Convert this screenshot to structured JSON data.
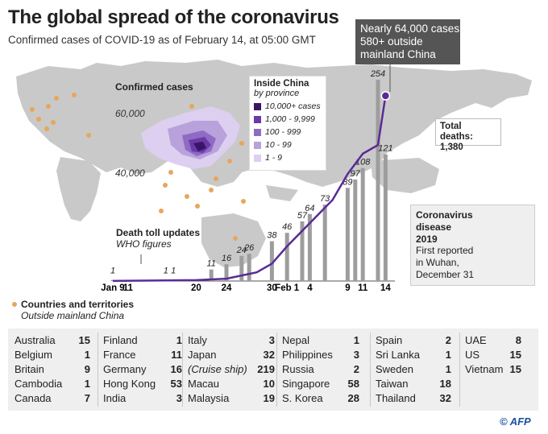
{
  "title": "The global spread of the coronavirus",
  "subtitle": "Confirmed cases of COVID-19 as of February 14, at 05:00 GMT",
  "callout": [
    "Nearly 64,000 cases",
    "580+ outside",
    "mainland China"
  ],
  "map_legend_title": "Confirmed cases",
  "lat_labels": [
    "60,000",
    "40,000"
  ],
  "china_legend": {
    "title": "Inside China",
    "subtitle": "by province",
    "items": [
      {
        "label": "10,000+ cases",
        "color": "#3a1466"
      },
      {
        "label": "1,000 - 9,999",
        "color": "#6a3aa8"
      },
      {
        "label": "100 - 999",
        "color": "#8f6bc4"
      },
      {
        "label": "10 - 99",
        "color": "#b9a1dc"
      },
      {
        "label": "1 - 9",
        "color": "#dccff0"
      }
    ]
  },
  "total_deaths": {
    "label": "Total deaths:",
    "value": "1,380"
  },
  "virus_box": {
    "title": [
      "Coronavirus",
      "disease",
      "2019"
    ],
    "text": [
      "First reported",
      "in Wuhan,",
      "December 31"
    ]
  },
  "death_toll": {
    "title": "Death toll updates",
    "subtitle": "WHO figures"
  },
  "countries_key": {
    "title": "Countries and territories",
    "subtitle": "Outside mainland China"
  },
  "colors": {
    "curve": "#5b2a96",
    "bar": "#9d9d9d",
    "country_dot": "#e9a55d",
    "map_land": "#c9c9c9",
    "callout_bg": "#555555"
  },
  "chart_data": {
    "type": "bar",
    "title": "Death toll updates",
    "subtitle": "WHO figures",
    "x_tick_labels": [
      "Jan 9",
      "11",
      "20",
      "24",
      "30",
      "Feb 1",
      "4",
      "9",
      "11",
      "14"
    ],
    "x_tick_days": [
      1,
      3,
      12,
      16,
      22,
      24,
      27,
      32,
      34,
      37
    ],
    "daily_deaths": [
      {
        "day": 1,
        "value": 1
      },
      {
        "day": 8,
        "value": 1
      },
      {
        "day": 9,
        "value": 1
      },
      {
        "day": 11,
        "value": 0
      },
      {
        "day": 12,
        "value": 0
      },
      {
        "day": 14,
        "value": 11
      },
      {
        "day": 15,
        "value": 0
      },
      {
        "day": 16,
        "value": 16
      },
      {
        "day": 17,
        "value": 0
      },
      {
        "day": 18,
        "value": 24
      },
      {
        "day": 19,
        "value": 26
      },
      {
        "day": 20,
        "value": 0
      },
      {
        "day": 21,
        "value": 0
      },
      {
        "day": 22,
        "value": 38
      },
      {
        "day": 23,
        "value": 0
      },
      {
        "day": 24,
        "value": 46
      },
      {
        "day": 25,
        "value": 0
      },
      {
        "day": 26,
        "value": 57
      },
      {
        "day": 27,
        "value": 64
      },
      {
        "day": 28,
        "value": 0
      },
      {
        "day": 29,
        "value": 73
      },
      {
        "day": 30,
        "value": 0
      },
      {
        "day": 31,
        "value": 0
      },
      {
        "day": 32,
        "value": 89
      },
      {
        "day": 33,
        "value": 97
      },
      {
        "day": 34,
        "value": 108
      },
      {
        "day": 35,
        "value": 0
      },
      {
        "day": 36,
        "value": 254
      },
      {
        "day": 37,
        "value": 121
      }
    ],
    "labeled_values": [
      "1",
      "1",
      "1",
      "11",
      "16",
      "24",
      "26",
      "38",
      "46",
      "57",
      "64",
      "73",
      "89",
      "97",
      "108",
      "254",
      "121"
    ],
    "cumulative_cases": [
      {
        "day": 1,
        "value": 41
      },
      {
        "day": 12,
        "value": 300
      },
      {
        "day": 16,
        "value": 800
      },
      {
        "day": 20,
        "value": 3000
      },
      {
        "day": 22,
        "value": 6000
      },
      {
        "day": 24,
        "value": 12000
      },
      {
        "day": 27,
        "value": 20000
      },
      {
        "day": 30,
        "value": 28000
      },
      {
        "day": 32,
        "value": 37000
      },
      {
        "day": 34,
        "value": 44000
      },
      {
        "day": 36,
        "value": 47000
      },
      {
        "day": 37,
        "value": 64000
      }
    ]
  },
  "countries": [
    [
      [
        "Australia",
        "15"
      ],
      [
        "Belgium",
        "1"
      ],
      [
        "Britain",
        "9"
      ],
      [
        "Cambodia",
        "1"
      ],
      [
        "Canada",
        "7"
      ]
    ],
    [
      [
        "Finland",
        "1"
      ],
      [
        "France",
        "11"
      ],
      [
        "Germany",
        "16"
      ],
      [
        "Hong Kong",
        "53"
      ],
      [
        "India",
        "3"
      ]
    ],
    [
      [
        "Italy",
        "3"
      ],
      [
        "Japan",
        "32"
      ],
      [
        "(Cruise ship)",
        "219"
      ],
      [
        "Macau",
        "10"
      ],
      [
        "Malaysia",
        "19"
      ]
    ],
    [
      [
        "Nepal",
        "1"
      ],
      [
        "Philippines",
        "3"
      ],
      [
        "Russia",
        "2"
      ],
      [
        "Singapore",
        "58"
      ],
      [
        "S. Korea",
        "28"
      ]
    ],
    [
      [
        "Spain",
        "2"
      ],
      [
        "Sri Lanka",
        "1"
      ],
      [
        "Sweden",
        "1"
      ],
      [
        "Taiwan",
        "18"
      ],
      [
        "Thailand",
        "32"
      ]
    ],
    [
      [
        "UAE",
        "8"
      ],
      [
        "US",
        "15"
      ],
      [
        "Vietnam",
        "15"
      ]
    ]
  ],
  "credit": "© AFP"
}
